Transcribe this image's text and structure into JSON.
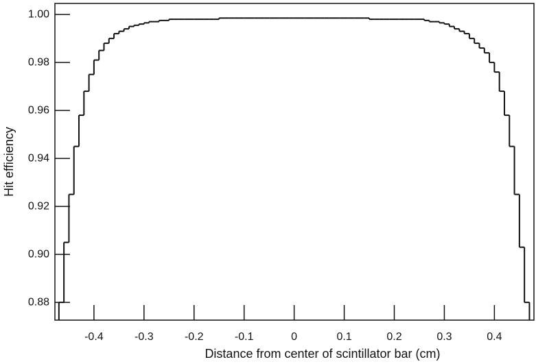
{
  "chart_data": {
    "type": "histogram_step",
    "xlabel": "Distance from center of scintillator bar (cm)",
    "ylabel": "Hit efficiency",
    "color": "#111111",
    "bins": [
      -0.47,
      -0.46,
      -0.45,
      -0.44,
      -0.43,
      -0.42,
      -0.41,
      -0.4,
      -0.39,
      -0.38,
      -0.37,
      -0.36,
      -0.35,
      -0.34,
      -0.33,
      -0.32,
      -0.31,
      -0.3,
      -0.29,
      -0.28,
      -0.27,
      -0.26,
      -0.25,
      -0.24,
      -0.23,
      -0.22,
      -0.21,
      -0.2,
      -0.19,
      -0.18,
      -0.17,
      -0.16,
      -0.15,
      -0.14,
      -0.13,
      -0.12,
      -0.11,
      -0.1,
      -0.09,
      -0.08,
      -0.07,
      -0.06,
      -0.05,
      -0.04,
      -0.03,
      -0.02,
      -0.01,
      0,
      0.01,
      0.02,
      0.03,
      0.04,
      0.05,
      0.06,
      0.07,
      0.08,
      0.09,
      0.1,
      0.11,
      0.12,
      0.13,
      0.14,
      0.15,
      0.16,
      0.17,
      0.18,
      0.19,
      0.2,
      0.21,
      0.22,
      0.23,
      0.24,
      0.25,
      0.26,
      0.27,
      0.28,
      0.29,
      0.3,
      0.31,
      0.32,
      0.33,
      0.34,
      0.35,
      0.36,
      0.37,
      0.38,
      0.39,
      0.4,
      0.41,
      0.42,
      0.43,
      0.44,
      0.45,
      0.46,
      0.47
    ],
    "values": [
      0.88,
      0.905,
      0.925,
      0.945,
      0.958,
      0.968,
      0.975,
      0.981,
      0.985,
      0.988,
      0.99,
      0.992,
      0.993,
      0.994,
      0.995,
      0.9955,
      0.996,
      0.9965,
      0.997,
      0.997,
      0.9975,
      0.9975,
      0.998,
      0.998,
      0.998,
      0.998,
      0.998,
      0.998,
      0.998,
      0.998,
      0.998,
      0.998,
      0.9985,
      0.9985,
      0.9985,
      0.9985,
      0.9985,
      0.9985,
      0.9985,
      0.9985,
      0.9985,
      0.9985,
      0.9985,
      0.9985,
      0.9985,
      0.9985,
      0.9985,
      0.9985,
      0.9985,
      0.9985,
      0.9985,
      0.9985,
      0.9985,
      0.9985,
      0.9985,
      0.9985,
      0.9985,
      0.9985,
      0.9985,
      0.9985,
      0.9985,
      0.9985,
      0.998,
      0.998,
      0.998,
      0.998,
      0.998,
      0.998,
      0.998,
      0.998,
      0.998,
      0.998,
      0.998,
      0.9975,
      0.997,
      0.997,
      0.9965,
      0.996,
      0.995,
      0.994,
      0.993,
      0.992,
      0.99,
      0.988,
      0.986,
      0.984,
      0.98,
      0.976,
      0.968,
      0.958,
      0.945,
      0.925,
      0.903,
      0.88
    ],
    "xlim": [
      -0.478,
      0.479
    ],
    "ylim": [
      0.8726,
      1.0046
    ],
    "xticks": [
      -0.4,
      -0.3,
      -0.2,
      -0.1,
      0,
      0.1,
      0.2,
      0.3,
      0.4
    ],
    "yticks": [
      0.88,
      {
        "value": 0.9,
        "label": "0.90"
      },
      0.92,
      0.94,
      0.96,
      0.98,
      {
        "value": 1,
        "label": "1.00"
      }
    ]
  }
}
